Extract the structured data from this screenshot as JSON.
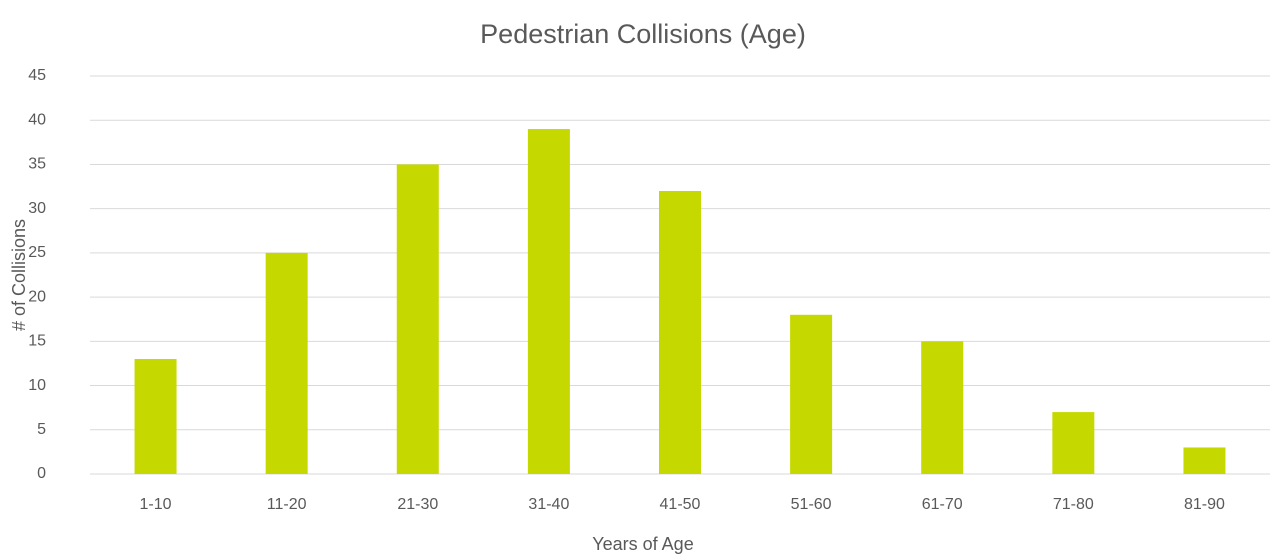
{
  "chart_data": {
    "type": "bar",
    "title": "Pedestrian Collisions (Age)",
    "x_label": "Years of Age",
    "y_label": "# of Collisions",
    "categories": [
      "1-10",
      "11-20",
      "21-30",
      "31-40",
      "41-50",
      "51-60",
      "61-70",
      "71-80",
      "81-90"
    ],
    "values": [
      13,
      25,
      35,
      39,
      32,
      18,
      15,
      7,
      3
    ],
    "color": "#c5d800",
    "ylim": [
      0,
      45
    ],
    "yticks": [
      0,
      5,
      10,
      15,
      20,
      25,
      30,
      35,
      40,
      45
    ],
    "grid": true
  }
}
